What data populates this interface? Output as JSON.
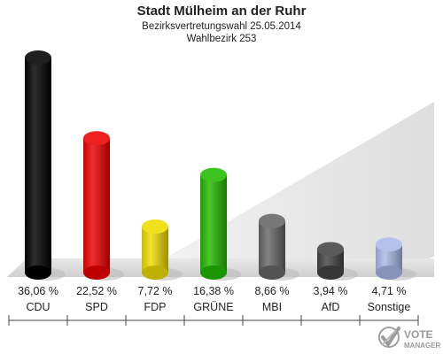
{
  "header": {
    "title": "Stadt Mülheim an der Ruhr",
    "subtitle": "Bezirksvertretungswahl 25.05.2014",
    "district": "Wahlbezirk 253"
  },
  "logo": {
    "line1": "VOTE",
    "line2": "MANAGER"
  },
  "chart_data": {
    "type": "bar",
    "title": "Stadt Mülheim an der Ruhr",
    "subtitle": "Bezirksvertretungswahl 25.05.2014 / Wahlbezirk 253",
    "categories": [
      "CDU",
      "SPD",
      "FDP",
      "GRÜNE",
      "MBI",
      "AfD",
      "Sonstige"
    ],
    "values": [
      36.06,
      22.52,
      7.72,
      16.38,
      8.66,
      3.94,
      4.71
    ],
    "value_labels": [
      "36,06 %",
      "22,52 %",
      "7,72 %",
      "16,38 %",
      "8,66 %",
      "3,94 %",
      "4,71 %"
    ],
    "unit": "%",
    "colors": [
      "#000000",
      "#ee0000",
      "#eedd00",
      "#22bb00",
      "#666666",
      "#444444",
      "#aab8e8"
    ],
    "ylim": [
      0,
      36.06
    ],
    "grid": false,
    "legend": "none"
  }
}
